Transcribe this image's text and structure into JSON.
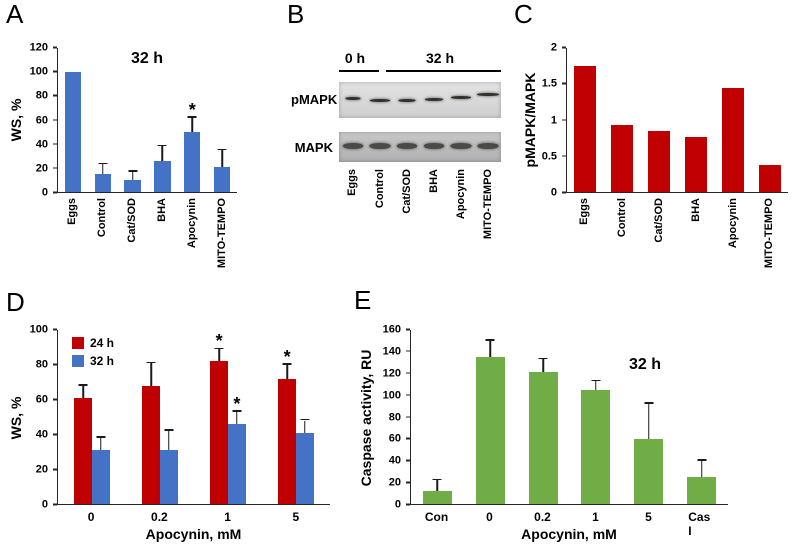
{
  "panels": {
    "A": "A",
    "B": "B",
    "C": "C",
    "D": "D",
    "E": "E"
  },
  "colors": {
    "blue": "#4472c4",
    "red": "#c00000",
    "green": "#70ad47"
  },
  "blot": {
    "time_labels": [
      "0 h",
      "32 h"
    ],
    "row_labels": [
      "pMAPK",
      "MAPK"
    ],
    "lane_labels": [
      "Eggs",
      "Control",
      "Cat/SOD",
      "BHA",
      "Apocynin",
      "MITO-TEMPO"
    ],
    "pmapk_band_widths": [
      15,
      20,
      17,
      18,
      20,
      22
    ],
    "pmapk_band_tops": [
      15,
      17,
      17,
      16,
      14,
      11
    ],
    "mapk_band_widths": [
      20,
      21,
      20,
      20,
      21,
      21
    ],
    "mapk_band_tops": [
      11,
      11,
      11,
      11,
      11,
      11
    ]
  },
  "chart_data": [
    {
      "panel": "A",
      "type": "bar",
      "title": "32 h",
      "ylabel": "WS, %",
      "xlabel": "",
      "ylim": [
        0,
        120
      ],
      "ytick_step": 20,
      "bar_color": "#4472c4",
      "bar_frac": 0.55,
      "categories": [
        "Eggs",
        "Control",
        "Cat/SOD",
        "BHA",
        "Apocynin",
        "MITO-TEMPO"
      ],
      "values": [
        100,
        15,
        10,
        26,
        50,
        21
      ],
      "errors": [
        0,
        8,
        7,
        12,
        12,
        14
      ],
      "stars": [
        false,
        false,
        false,
        false,
        true,
        false
      ],
      "xtick_rotated": true,
      "grid": false,
      "legend_position": "none"
    },
    {
      "panel": "C",
      "type": "bar",
      "title": "",
      "ylabel": "pMAPK/MAPK",
      "xlabel": "",
      "ylim": [
        0,
        2
      ],
      "ytick_step": 0.5,
      "bar_color": "#c00000",
      "bar_frac": 0.6,
      "categories": [
        "Eggs",
        "Control",
        "Cat/SOD",
        "BHA",
        "Apocynin",
        "MITO-TEMPO"
      ],
      "values": [
        1.75,
        0.93,
        0.85,
        0.77,
        1.44,
        0.38
      ],
      "errors": [
        0,
        0,
        0,
        0,
        0,
        0
      ],
      "stars": [
        false,
        false,
        false,
        false,
        false,
        false
      ],
      "xtick_rotated": true,
      "grid": false,
      "legend_position": "none"
    },
    {
      "panel": "D",
      "type": "grouped-bar",
      "title": "",
      "ylabel": "WS, %",
      "xlabel": "Apocynin, mM",
      "ylim": [
        0,
        100
      ],
      "ytick_step": 20,
      "bar_frac": 0.26,
      "categories": [
        "0",
        "0.2",
        "1",
        "5"
      ],
      "series": [
        {
          "name": "24 h",
          "color": "#c00000",
          "values": [
            61,
            68,
            82,
            72
          ],
          "errors": [
            7,
            13,
            7,
            8
          ],
          "stars": [
            false,
            false,
            true,
            true
          ]
        },
        {
          "name": "32 h",
          "color": "#4472c4",
          "values": [
            31,
            31,
            46,
            41
          ],
          "errors": [
            7,
            11,
            7,
            7
          ],
          "stars": [
            false,
            false,
            true,
            false
          ]
        }
      ],
      "xtick_rotated": false,
      "grid": false,
      "legend_position": "top-left"
    },
    {
      "panel": "E",
      "type": "bar",
      "title": "32 h",
      "ylabel": "Caspase activity, RU",
      "xlabel": "Apocynin, mM",
      "ylim": [
        0,
        160
      ],
      "ytick_step": 20,
      "bar_color": "#70ad47",
      "bar_frac": 0.55,
      "categories": [
        "Con",
        "0",
        "0.2",
        "1",
        "5",
        "Cas I"
      ],
      "values": [
        12,
        135,
        121,
        105,
        60,
        25
      ],
      "errors": [
        10,
        15,
        12,
        8,
        32,
        15
      ],
      "stars": [
        false,
        false,
        false,
        false,
        false,
        false
      ],
      "xtick_rotated": false,
      "grid": false,
      "legend_position": "none"
    }
  ]
}
